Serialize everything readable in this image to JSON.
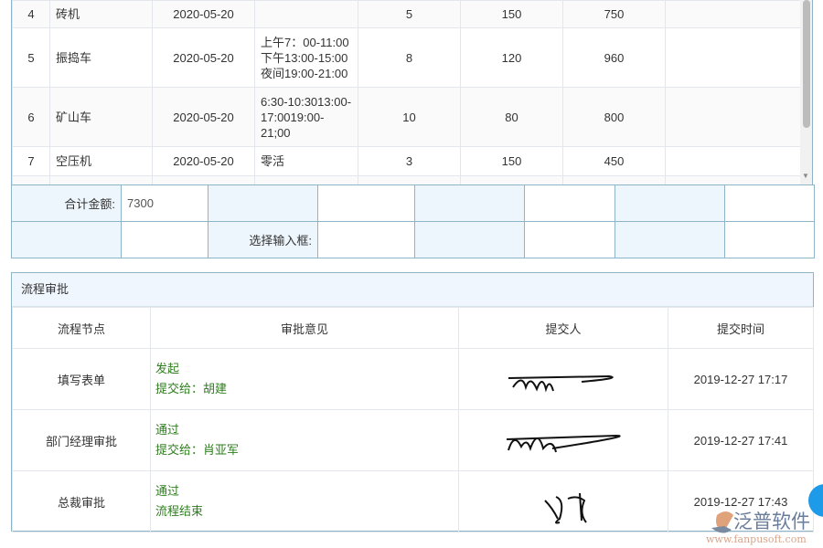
{
  "rows": [
    {
      "no": "4",
      "name": "砖机",
      "date": "2020-05-20",
      "time": "",
      "qty": "5",
      "price": "150",
      "amount": "750"
    },
    {
      "no": "5",
      "name": "振捣车",
      "date": "2020-05-20",
      "time": "上午7：00-11:00\n下午13:00-15:00\n夜间19:00-21:00",
      "qty": "8",
      "price": "120",
      "amount": "960"
    },
    {
      "no": "6",
      "name": "矿山车",
      "date": "2020-05-20",
      "time": "6:30-10:3013:00-17:0019:00-21;00",
      "qty": "10",
      "price": "80",
      "amount": "800"
    },
    {
      "no": "7",
      "name": "空压机",
      "date": "2020-05-20",
      "time": "零活",
      "qty": "3",
      "price": "150",
      "amount": "450"
    }
  ],
  "summary": {
    "total_label": "合计金额:",
    "total_value": "7300",
    "select_label": "选择输入框:"
  },
  "approval": {
    "title": "流程审批",
    "headers": [
      "流程节点",
      "审批意见",
      "提交人",
      "提交时间"
    ],
    "rows": [
      {
        "node": "填写表单",
        "op1": "发起",
        "op2": "提交给：胡建",
        "time": "2019-12-27 17:17"
      },
      {
        "node": "部门经理审批",
        "op1": "通过",
        "op2": "提交给：肖亚军",
        "time": "2019-12-27 17:41"
      },
      {
        "node": "总裁审批",
        "op1": "通过",
        "op2": "流程结束",
        "time": "2019-12-27 17:43"
      }
    ]
  },
  "watermark": {
    "brand": "泛普软件",
    "url": "www.fanpusoft.com"
  }
}
